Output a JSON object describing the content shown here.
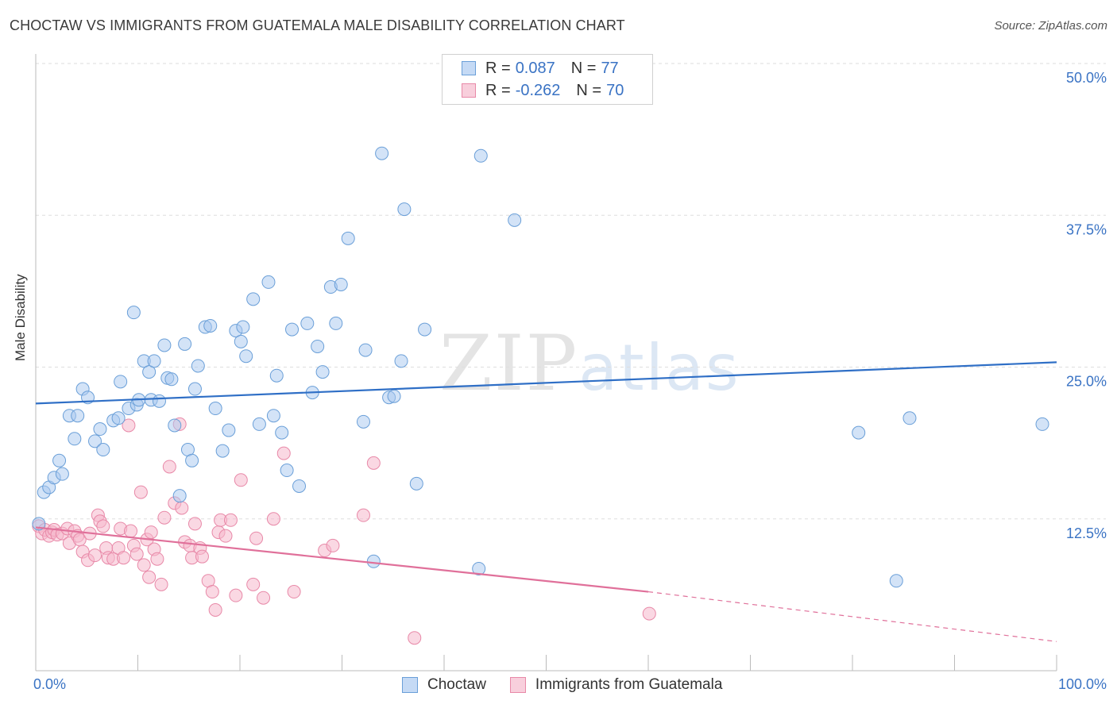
{
  "title": "CHOCTAW VS IMMIGRANTS FROM GUATEMALA MALE DISABILITY CORRELATION CHART",
  "source": "Source: ZipAtlas.com",
  "watermark": {
    "zip": "ZIP",
    "atlas": "atlas"
  },
  "legend": {
    "r_label": "R =",
    "n_label": "N =",
    "series1": {
      "r": "0.087",
      "n": "77"
    },
    "series2": {
      "r": "-0.262",
      "n": "70"
    }
  },
  "colors": {
    "blue_fill": "#a8c8f0",
    "blue_stroke": "#6a9fd8",
    "blue_line": "#2f6fc6",
    "pink_fill": "#f5b8cc",
    "pink_stroke": "#e889a8",
    "pink_line": "#e0709a",
    "tick_text": "#3a73c4"
  },
  "chart_data": {
    "type": "scatter",
    "title": "CHOCTAW VS IMMIGRANTS FROM GUATEMALA MALE DISABILITY CORRELATION CHART",
    "xlabel": "",
    "ylabel": "Male Disability",
    "xlim": [
      0,
      100
    ],
    "ylim": [
      0,
      50
    ],
    "x_tick_labels": [
      "0.0%",
      "100.0%"
    ],
    "y_ticks": [
      12.5,
      25.0,
      37.5,
      50.0
    ],
    "y_tick_labels": [
      "12.5%",
      "25.0%",
      "37.5%",
      "50.0%"
    ],
    "grid": true,
    "legend_position": "top-center",
    "series": [
      {
        "name": "Choctaw",
        "r": 0.087,
        "n": 77,
        "trend": {
          "x": [
            0,
            100
          ],
          "y": [
            22.0,
            25.4
          ]
        },
        "points": [
          [
            0.3,
            12.1
          ],
          [
            0.8,
            14.7
          ],
          [
            1.3,
            15.1
          ],
          [
            1.8,
            15.9
          ],
          [
            2.3,
            17.3
          ],
          [
            2.6,
            16.2
          ],
          [
            3.3,
            21.0
          ],
          [
            3.8,
            19.1
          ],
          [
            4.1,
            21.0
          ],
          [
            4.6,
            23.2
          ],
          [
            5.1,
            22.5
          ],
          [
            5.8,
            18.9
          ],
          [
            6.3,
            19.9
          ],
          [
            6.6,
            18.2
          ],
          [
            7.6,
            20.6
          ],
          [
            8.1,
            20.8
          ],
          [
            8.3,
            23.8
          ],
          [
            9.1,
            21.6
          ],
          [
            9.6,
            29.5
          ],
          [
            9.9,
            21.9
          ],
          [
            10.1,
            22.3
          ],
          [
            10.6,
            25.5
          ],
          [
            11.1,
            24.6
          ],
          [
            11.3,
            22.3
          ],
          [
            11.6,
            25.5
          ],
          [
            12.1,
            22.2
          ],
          [
            12.6,
            26.8
          ],
          [
            12.9,
            24.1
          ],
          [
            13.3,
            24.0
          ],
          [
            13.6,
            20.2
          ],
          [
            14.1,
            14.4
          ],
          [
            14.9,
            18.2
          ],
          [
            15.9,
            25.1
          ],
          [
            14.6,
            26.9
          ],
          [
            15.3,
            17.3
          ],
          [
            15.6,
            23.2
          ],
          [
            16.6,
            28.3
          ],
          [
            17.1,
            28.4
          ],
          [
            17.6,
            21.6
          ],
          [
            18.3,
            18.1
          ],
          [
            18.9,
            19.8
          ],
          [
            19.6,
            28.0
          ],
          [
            20.1,
            27.1
          ],
          [
            20.3,
            28.3
          ],
          [
            20.6,
            25.9
          ],
          [
            21.3,
            30.6
          ],
          [
            21.9,
            20.3
          ],
          [
            22.8,
            32.0
          ],
          [
            23.3,
            21.0
          ],
          [
            23.6,
            24.3
          ],
          [
            24.1,
            19.6
          ],
          [
            24.6,
            16.5
          ],
          [
            25.1,
            28.1
          ],
          [
            25.8,
            15.2
          ],
          [
            26.6,
            28.6
          ],
          [
            27.1,
            22.9
          ],
          [
            27.6,
            26.7
          ],
          [
            28.1,
            24.6
          ],
          [
            28.9,
            31.6
          ],
          [
            29.4,
            28.6
          ],
          [
            29.9,
            31.8
          ],
          [
            30.6,
            35.6
          ],
          [
            32.1,
            20.5
          ],
          [
            32.3,
            26.4
          ],
          [
            33.1,
            9.0
          ],
          [
            33.9,
            42.6
          ],
          [
            34.6,
            22.5
          ],
          [
            35.1,
            22.6
          ],
          [
            35.8,
            25.5
          ],
          [
            36.1,
            38.0
          ],
          [
            37.3,
            15.4
          ],
          [
            38.1,
            28.1
          ],
          [
            43.4,
            8.4
          ],
          [
            43.6,
            42.4
          ],
          [
            46.9,
            37.1
          ],
          [
            80.6,
            19.6
          ],
          [
            84.3,
            7.4
          ],
          [
            85.6,
            20.8
          ],
          [
            98.6,
            20.3
          ]
        ]
      },
      {
        "name": "Immigrants from Guatemala",
        "r": -0.262,
        "n": 70,
        "trend": {
          "x": [
            0,
            60
          ],
          "y": [
            11.8,
            6.5
          ]
        },
        "trend_dashed": {
          "x": [
            60,
            100
          ],
          "y": [
            6.5,
            2.4
          ]
        },
        "points": [
          [
            0.3,
            11.9
          ],
          [
            0.6,
            11.3
          ],
          [
            0.9,
            11.6
          ],
          [
            1.3,
            11.1
          ],
          [
            1.6,
            11.4
          ],
          [
            1.8,
            11.6
          ],
          [
            2.1,
            11.2
          ],
          [
            2.6,
            11.3
          ],
          [
            3.1,
            11.7
          ],
          [
            3.3,
            10.5
          ],
          [
            3.8,
            11.5
          ],
          [
            4.1,
            11.1
          ],
          [
            4.3,
            10.8
          ],
          [
            4.6,
            9.8
          ],
          [
            5.1,
            9.1
          ],
          [
            5.3,
            11.3
          ],
          [
            5.8,
            9.5
          ],
          [
            6.1,
            12.8
          ],
          [
            6.3,
            12.3
          ],
          [
            6.6,
            11.9
          ],
          [
            6.9,
            10.1
          ],
          [
            7.1,
            9.3
          ],
          [
            7.6,
            9.2
          ],
          [
            8.1,
            10.1
          ],
          [
            8.3,
            11.7
          ],
          [
            8.6,
            9.3
          ],
          [
            9.1,
            20.2
          ],
          [
            9.3,
            11.5
          ],
          [
            9.6,
            10.3
          ],
          [
            9.9,
            9.6
          ],
          [
            10.3,
            14.7
          ],
          [
            10.6,
            8.7
          ],
          [
            10.9,
            10.8
          ],
          [
            11.1,
            7.7
          ],
          [
            11.3,
            11.4
          ],
          [
            11.6,
            10.0
          ],
          [
            11.9,
            9.2
          ],
          [
            12.3,
            7.1
          ],
          [
            12.6,
            12.6
          ],
          [
            13.1,
            16.8
          ],
          [
            13.6,
            13.8
          ],
          [
            14.1,
            20.3
          ],
          [
            14.3,
            13.4
          ],
          [
            14.6,
            10.6
          ],
          [
            15.1,
            10.3
          ],
          [
            15.3,
            9.3
          ],
          [
            15.6,
            12.1
          ],
          [
            16.1,
            10.1
          ],
          [
            16.3,
            9.4
          ],
          [
            16.9,
            7.4
          ],
          [
            17.3,
            6.5
          ],
          [
            17.6,
            5.0
          ],
          [
            17.9,
            11.4
          ],
          [
            18.1,
            12.4
          ],
          [
            18.6,
            11.1
          ],
          [
            19.1,
            12.4
          ],
          [
            19.6,
            6.2
          ],
          [
            20.1,
            15.7
          ],
          [
            21.3,
            7.1
          ],
          [
            21.6,
            10.9
          ],
          [
            22.3,
            6.0
          ],
          [
            23.3,
            12.5
          ],
          [
            24.3,
            17.9
          ],
          [
            25.3,
            6.5
          ],
          [
            28.3,
            9.9
          ],
          [
            29.1,
            10.3
          ],
          [
            32.1,
            12.8
          ],
          [
            33.1,
            17.1
          ],
          [
            37.1,
            2.7
          ],
          [
            60.1,
            4.7
          ]
        ]
      }
    ]
  }
}
